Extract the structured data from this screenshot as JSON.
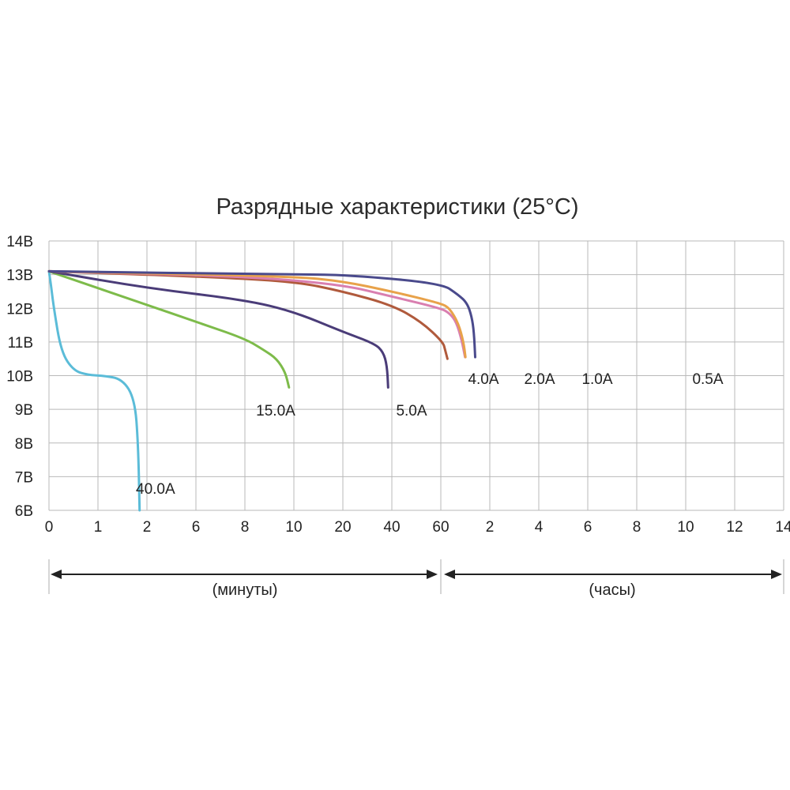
{
  "chart_data": {
    "type": "line",
    "title": "Разрядные характеристики (25°C)",
    "xlabel": "",
    "ylabel": "",
    "x_ticks": [
      "0",
      "1",
      "2",
      "6",
      "8",
      "10",
      "20",
      "40",
      "60",
      "2",
      "4",
      "6",
      "8",
      "10",
      "12",
      "14"
    ],
    "y_ticks": [
      "14В",
      "13В",
      "12В",
      "11В",
      "10В",
      "9В",
      "8В",
      "7В",
      "6В"
    ],
    "ylim": [
      6,
      14
    ],
    "grid": true,
    "x_ranges": [
      {
        "label": "(минуты)",
        "from_tick": "0",
        "to_tick": "60"
      },
      {
        "label": "(часы)",
        "from_tick": "60",
        "to_tick": "14"
      }
    ],
    "series": [
      {
        "name": "40.0A",
        "color": "#5bbcd8",
        "points": [
          [
            0,
            13.1
          ],
          [
            0.04,
            12.7
          ],
          [
            0.1,
            12.0
          ],
          [
            0.25,
            10.7
          ],
          [
            0.5,
            10.15
          ],
          [
            0.8,
            10.02
          ],
          [
            1.1,
            10.0
          ],
          [
            1.5,
            9.9
          ],
          [
            1.75,
            9.3
          ],
          [
            1.82,
            8.0
          ],
          [
            1.85,
            6.0
          ]
        ]
      },
      {
        "name": "15.0A",
        "color": "#7dbb4a",
        "points": [
          [
            0,
            13.1
          ],
          [
            2,
            12.1
          ],
          [
            6,
            11.6
          ],
          [
            8,
            11.1
          ],
          [
            8.8,
            10.75
          ],
          [
            9.3,
            10.5
          ],
          [
            9.65,
            10.1
          ],
          [
            9.8,
            9.65
          ]
        ]
      },
      {
        "name": "5.0A",
        "color": "#4a3c78",
        "points": [
          [
            0,
            13.1
          ],
          [
            2,
            12.6
          ],
          [
            8,
            12.25
          ],
          [
            10,
            11.9
          ],
          [
            20,
            11.3
          ],
          [
            33,
            10.95
          ],
          [
            36.5,
            10.7
          ],
          [
            38,
            10.3
          ],
          [
            38.5,
            9.65
          ]
        ]
      },
      {
        "name": "4.0A",
        "color": "#b05a3c",
        "points": [
          [
            0,
            13.1
          ],
          [
            6,
            12.95
          ],
          [
            10,
            12.8
          ],
          [
            20,
            12.5
          ],
          [
            40,
            12.1
          ],
          [
            52,
            11.6
          ],
          [
            62,
            11.0
          ],
          [
            64,
            10.75
          ],
          [
            66,
            10.5
          ]
        ]
      },
      {
        "name": "2.0A",
        "color": "#d97fb0",
        "points": [
          [
            0,
            13.1
          ],
          [
            8,
            12.95
          ],
          [
            20,
            12.7
          ],
          [
            40,
            12.35
          ],
          [
            60,
            12.0
          ],
          [
            68,
            11.85
          ],
          [
            74,
            11.6
          ],
          [
            79,
            11.05
          ],
          [
            82,
            10.55
          ]
        ]
      },
      {
        "name": "1.0A",
        "color": "#e8a24a",
        "points": [
          [
            0,
            13.1
          ],
          [
            10,
            12.95
          ],
          [
            20,
            12.8
          ],
          [
            40,
            12.5
          ],
          [
            60,
            12.15
          ],
          [
            68,
            12.0
          ],
          [
            76,
            11.55
          ],
          [
            80.6,
            11.0
          ],
          [
            82.4,
            10.55
          ]
        ]
      },
      {
        "name": "0.5A",
        "color": "#4a4a8c",
        "points": [
          [
            0,
            13.1
          ],
          [
            10,
            13.0
          ],
          [
            20,
            13.0
          ],
          [
            60,
            12.75
          ],
          [
            76,
            12.4
          ],
          [
            84,
            12.15
          ],
          [
            88,
            11.75
          ],
          [
            90,
            11.3
          ],
          [
            91.2,
            10.55
          ]
        ]
      }
    ]
  }
}
